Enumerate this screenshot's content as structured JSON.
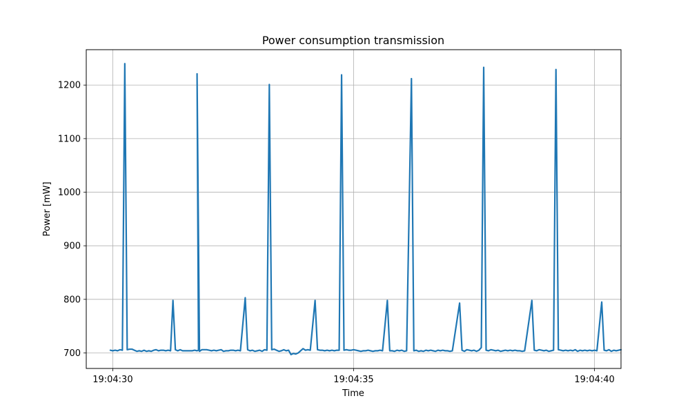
{
  "chart_data": {
    "type": "line",
    "title": "Power consumption transmission",
    "xlabel": "Time",
    "ylabel": "Power [mW]",
    "x_unit": "seconds after 19:04:30",
    "xlim": [
      -0.55,
      10.55
    ],
    "ylim": [
      671,
      1266
    ],
    "x_ticks": [
      {
        "value": 0,
        "label": "19:04:30"
      },
      {
        "value": 5,
        "label": "19:04:35"
      },
      {
        "value": 10,
        "label": "19:04:40"
      }
    ],
    "y_ticks": [
      {
        "value": 700,
        "label": "700"
      },
      {
        "value": 800,
        "label": "800"
      },
      {
        "value": 900,
        "label": "900"
      },
      {
        "value": 1000,
        "label": "1000"
      },
      {
        "value": 1100,
        "label": "1100"
      },
      {
        "value": 1200,
        "label": "1200"
      }
    ],
    "grid": true,
    "line_color": "#1f77b4",
    "series": [
      {
        "name": "",
        "points": [
          [
            -0.05,
            705
          ],
          [
            0.0,
            704
          ],
          [
            0.05,
            705
          ],
          [
            0.1,
            704
          ],
          [
            0.15,
            706
          ],
          [
            0.2,
            705
          ],
          [
            0.25,
            1240
          ],
          [
            0.3,
            706
          ],
          [
            0.35,
            707
          ],
          [
            0.4,
            707
          ],
          [
            0.45,
            705
          ],
          [
            0.5,
            703
          ],
          [
            0.55,
            704
          ],
          [
            0.6,
            703
          ],
          [
            0.65,
            705
          ],
          [
            0.7,
            703
          ],
          [
            0.75,
            704
          ],
          [
            0.8,
            703
          ],
          [
            0.85,
            705
          ],
          [
            0.9,
            706
          ],
          [
            0.95,
            704
          ],
          [
            1.0,
            705
          ],
          [
            1.05,
            705
          ],
          [
            1.1,
            704
          ],
          [
            1.15,
            705
          ],
          [
            1.2,
            704
          ],
          [
            1.25,
            798
          ],
          [
            1.3,
            706
          ],
          [
            1.35,
            704
          ],
          [
            1.4,
            706
          ],
          [
            1.45,
            704
          ],
          [
            1.5,
            704
          ],
          [
            1.55,
            704
          ],
          [
            1.6,
            704
          ],
          [
            1.65,
            704
          ],
          [
            1.7,
            705
          ],
          [
            1.75,
            704
          ],
          [
            1.78,
            705
          ],
          [
            1.75,
            1221
          ],
          [
            1.8,
            703
          ],
          [
            1.85,
            706
          ],
          [
            1.9,
            706
          ],
          [
            1.95,
            706
          ],
          [
            2.0,
            705
          ],
          [
            2.05,
            704
          ],
          [
            2.1,
            705
          ],
          [
            2.15,
            704
          ],
          [
            2.2,
            705
          ],
          [
            2.25,
            706
          ],
          [
            2.3,
            703
          ],
          [
            2.35,
            704
          ],
          [
            2.4,
            704
          ],
          [
            2.45,
            705
          ],
          [
            2.5,
            705
          ],
          [
            2.55,
            704
          ],
          [
            2.6,
            705
          ],
          [
            2.65,
            704
          ],
          [
            2.75,
            803
          ],
          [
            2.8,
            706
          ],
          [
            2.85,
            704
          ],
          [
            2.9,
            705
          ],
          [
            2.95,
            703
          ],
          [
            3.0,
            704
          ],
          [
            3.05,
            705
          ],
          [
            3.1,
            703
          ],
          [
            3.15,
            706
          ],
          [
            3.2,
            705
          ],
          [
            3.25,
            1201
          ],
          [
            3.3,
            706
          ],
          [
            3.35,
            707
          ],
          [
            3.4,
            705
          ],
          [
            3.45,
            703
          ],
          [
            3.5,
            704
          ],
          [
            3.55,
            706
          ],
          [
            3.6,
            704
          ],
          [
            3.65,
            705
          ],
          [
            3.7,
            697
          ],
          [
            3.75,
            699
          ],
          [
            3.8,
            698
          ],
          [
            3.85,
            700
          ],
          [
            3.9,
            704
          ],
          [
            3.95,
            708
          ],
          [
            4.0,
            705
          ],
          [
            4.05,
            706
          ],
          [
            4.1,
            705
          ],
          [
            4.2,
            798
          ],
          [
            4.25,
            706
          ],
          [
            4.3,
            705
          ],
          [
            4.35,
            705
          ],
          [
            4.4,
            704
          ],
          [
            4.45,
            705
          ],
          [
            4.5,
            704
          ],
          [
            4.55,
            705
          ],
          [
            4.6,
            704
          ],
          [
            4.65,
            705
          ],
          [
            4.7,
            705
          ],
          [
            4.75,
            1219
          ],
          [
            4.8,
            705
          ],
          [
            4.85,
            706
          ],
          [
            4.9,
            705
          ],
          [
            4.95,
            705
          ],
          [
            5.0,
            706
          ],
          [
            5.05,
            705
          ],
          [
            5.1,
            704
          ],
          [
            5.15,
            703
          ],
          [
            5.2,
            704
          ],
          [
            5.25,
            704
          ],
          [
            5.3,
            705
          ],
          [
            5.35,
            704
          ],
          [
            5.4,
            703
          ],
          [
            5.45,
            704
          ],
          [
            5.5,
            704
          ],
          [
            5.55,
            705
          ],
          [
            5.6,
            704
          ],
          [
            5.7,
            798
          ],
          [
            5.75,
            704
          ],
          [
            5.8,
            704
          ],
          [
            5.85,
            703
          ],
          [
            5.9,
            705
          ],
          [
            5.95,
            704
          ],
          [
            6.0,
            705
          ],
          [
            6.05,
            703
          ],
          [
            6.1,
            704
          ],
          [
            6.2,
            1212
          ],
          [
            6.25,
            704
          ],
          [
            6.3,
            705
          ],
          [
            6.35,
            703
          ],
          [
            6.4,
            704
          ],
          [
            6.45,
            703
          ],
          [
            6.5,
            705
          ],
          [
            6.55,
            704
          ],
          [
            6.6,
            705
          ],
          [
            6.65,
            704
          ],
          [
            6.7,
            703
          ],
          [
            6.75,
            705
          ],
          [
            6.8,
            704
          ],
          [
            6.85,
            705
          ],
          [
            6.9,
            704
          ],
          [
            6.95,
            704
          ],
          [
            7.0,
            703
          ],
          [
            7.05,
            704
          ],
          [
            7.2,
            793
          ],
          [
            7.25,
            705
          ],
          [
            7.3,
            703
          ],
          [
            7.35,
            706
          ],
          [
            7.4,
            705
          ],
          [
            7.45,
            704
          ],
          [
            7.5,
            705
          ],
          [
            7.55,
            703
          ],
          [
            7.6,
            705
          ],
          [
            7.65,
            710
          ],
          [
            7.7,
            1233
          ],
          [
            7.75,
            705
          ],
          [
            7.8,
            704
          ],
          [
            7.85,
            706
          ],
          [
            7.9,
            705
          ],
          [
            7.95,
            704
          ],
          [
            8.0,
            705
          ],
          [
            8.05,
            703
          ],
          [
            8.1,
            704
          ],
          [
            8.15,
            705
          ],
          [
            8.2,
            704
          ],
          [
            8.25,
            705
          ],
          [
            8.3,
            704
          ],
          [
            8.35,
            705
          ],
          [
            8.4,
            704
          ],
          [
            8.45,
            704
          ],
          [
            8.5,
            703
          ],
          [
            8.55,
            704
          ],
          [
            8.7,
            798
          ],
          [
            8.75,
            705
          ],
          [
            8.8,
            704
          ],
          [
            8.85,
            706
          ],
          [
            8.9,
            705
          ],
          [
            8.95,
            704
          ],
          [
            9.0,
            705
          ],
          [
            9.05,
            703
          ],
          [
            9.1,
            704
          ],
          [
            9.15,
            705
          ],
          [
            9.2,
            1229
          ],
          [
            9.25,
            706
          ],
          [
            9.3,
            705
          ],
          [
            9.35,
            704
          ],
          [
            9.4,
            705
          ],
          [
            9.45,
            704
          ],
          [
            9.5,
            705
          ],
          [
            9.55,
            704
          ],
          [
            9.6,
            706
          ],
          [
            9.65,
            703
          ],
          [
            9.7,
            705
          ],
          [
            9.75,
            704
          ],
          [
            9.8,
            705
          ],
          [
            9.85,
            704
          ],
          [
            9.9,
            705
          ],
          [
            9.95,
            704
          ],
          [
            10.0,
            705
          ],
          [
            10.05,
            704
          ],
          [
            10.15,
            795
          ],
          [
            10.2,
            705
          ],
          [
            10.25,
            704
          ],
          [
            10.3,
            706
          ],
          [
            10.35,
            703
          ],
          [
            10.4,
            705
          ],
          [
            10.45,
            704
          ],
          [
            10.55,
            706
          ]
        ]
      }
    ]
  }
}
